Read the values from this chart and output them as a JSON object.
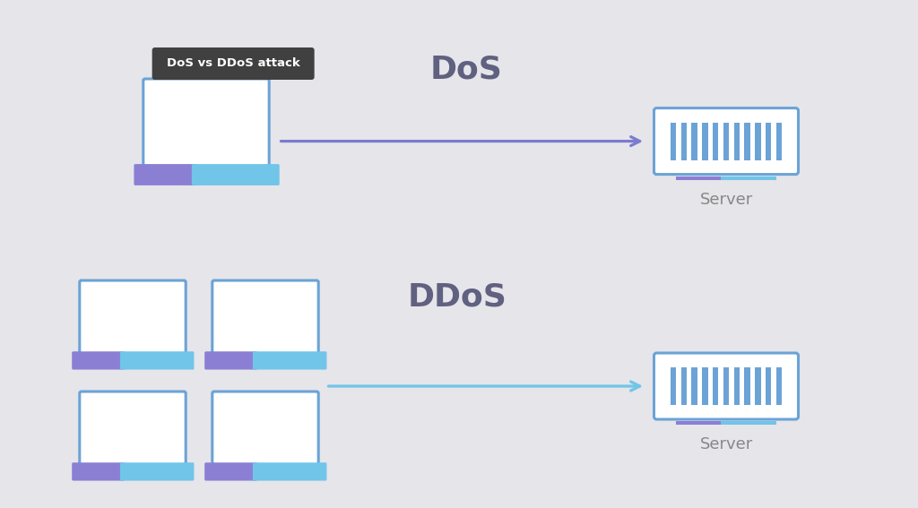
{
  "bg_color": "#e5e5ea",
  "laptop_border_color": "#6ba3d6",
  "laptop_screen_bg": "#ffffff",
  "laptop_base_left": "#8b7fd4",
  "laptop_base_right": "#70c5e8",
  "server_border": "#6ba3d6",
  "server_bar_color": "#6ba3d6",
  "server_base_line": "#6ba3d6",
  "arrow_color_dos": "#7b7bcf",
  "arrow_color_ddos": "#70c5e8",
  "tooltip_bg": "#404040",
  "tooltip_text": "#ffffff",
  "tooltip_label": "DoS vs DDoS attack",
  "dos_label": "DoS",
  "ddos_label": "DDoS",
  "server_label": "Server",
  "label_color": "#888888",
  "section_label_color": "#606080"
}
